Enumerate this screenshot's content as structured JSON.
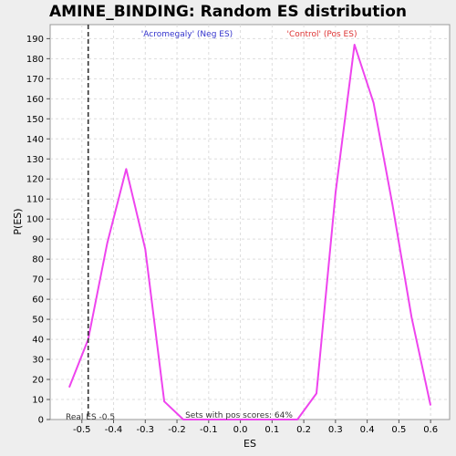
{
  "chart_data": {
    "type": "line",
    "title": "AMINE_BINDING: Random ES distribution",
    "xlabel": "ES",
    "ylabel": "P(ES)",
    "xlim": [
      -0.6,
      0.66
    ],
    "ylim": [
      0,
      197
    ],
    "x_ticks": [
      "-0.5",
      "-0.4",
      "-0.3",
      "-0.2",
      "-0.1",
      "0.0",
      "0.1",
      "0.2",
      "0.3",
      "0.4",
      "0.5",
      "0.6"
    ],
    "y_ticks": [
      "0",
      "10",
      "20",
      "30",
      "40",
      "50",
      "60",
      "70",
      "80",
      "90",
      "100",
      "110",
      "120",
      "130",
      "140",
      "150",
      "160",
      "170",
      "180",
      "190"
    ],
    "grid": true,
    "series": [
      {
        "color": "#ee44ee",
        "x": [
          -0.54,
          -0.48,
          -0.42,
          -0.36,
          -0.3,
          -0.24,
          -0.18,
          -0.12,
          -0.06,
          0.0,
          0.06,
          0.12,
          0.18,
          0.24,
          0.3,
          0.36,
          0.42,
          0.48,
          0.54,
          0.6
        ],
        "y": [
          16,
          40,
          88,
          125,
          85,
          9,
          0,
          0,
          0,
          0,
          0,
          0,
          0,
          13,
          113,
          187,
          158,
          107,
          51,
          7
        ]
      }
    ],
    "real_es": {
      "x": -0.48,
      "label": "Real ES -0.5"
    },
    "annotations": {
      "neg_label": "'Acromegaly' (Neg ES)",
      "pos_label": "'Control' (Pos ES)",
      "pos_scores": "Sets with pos scores: 64%"
    },
    "colors": {
      "line": "#ee44ee",
      "neg": "#3333cc",
      "pos": "#dd3333",
      "grid": "#dddddd",
      "marker": "#333333"
    }
  }
}
